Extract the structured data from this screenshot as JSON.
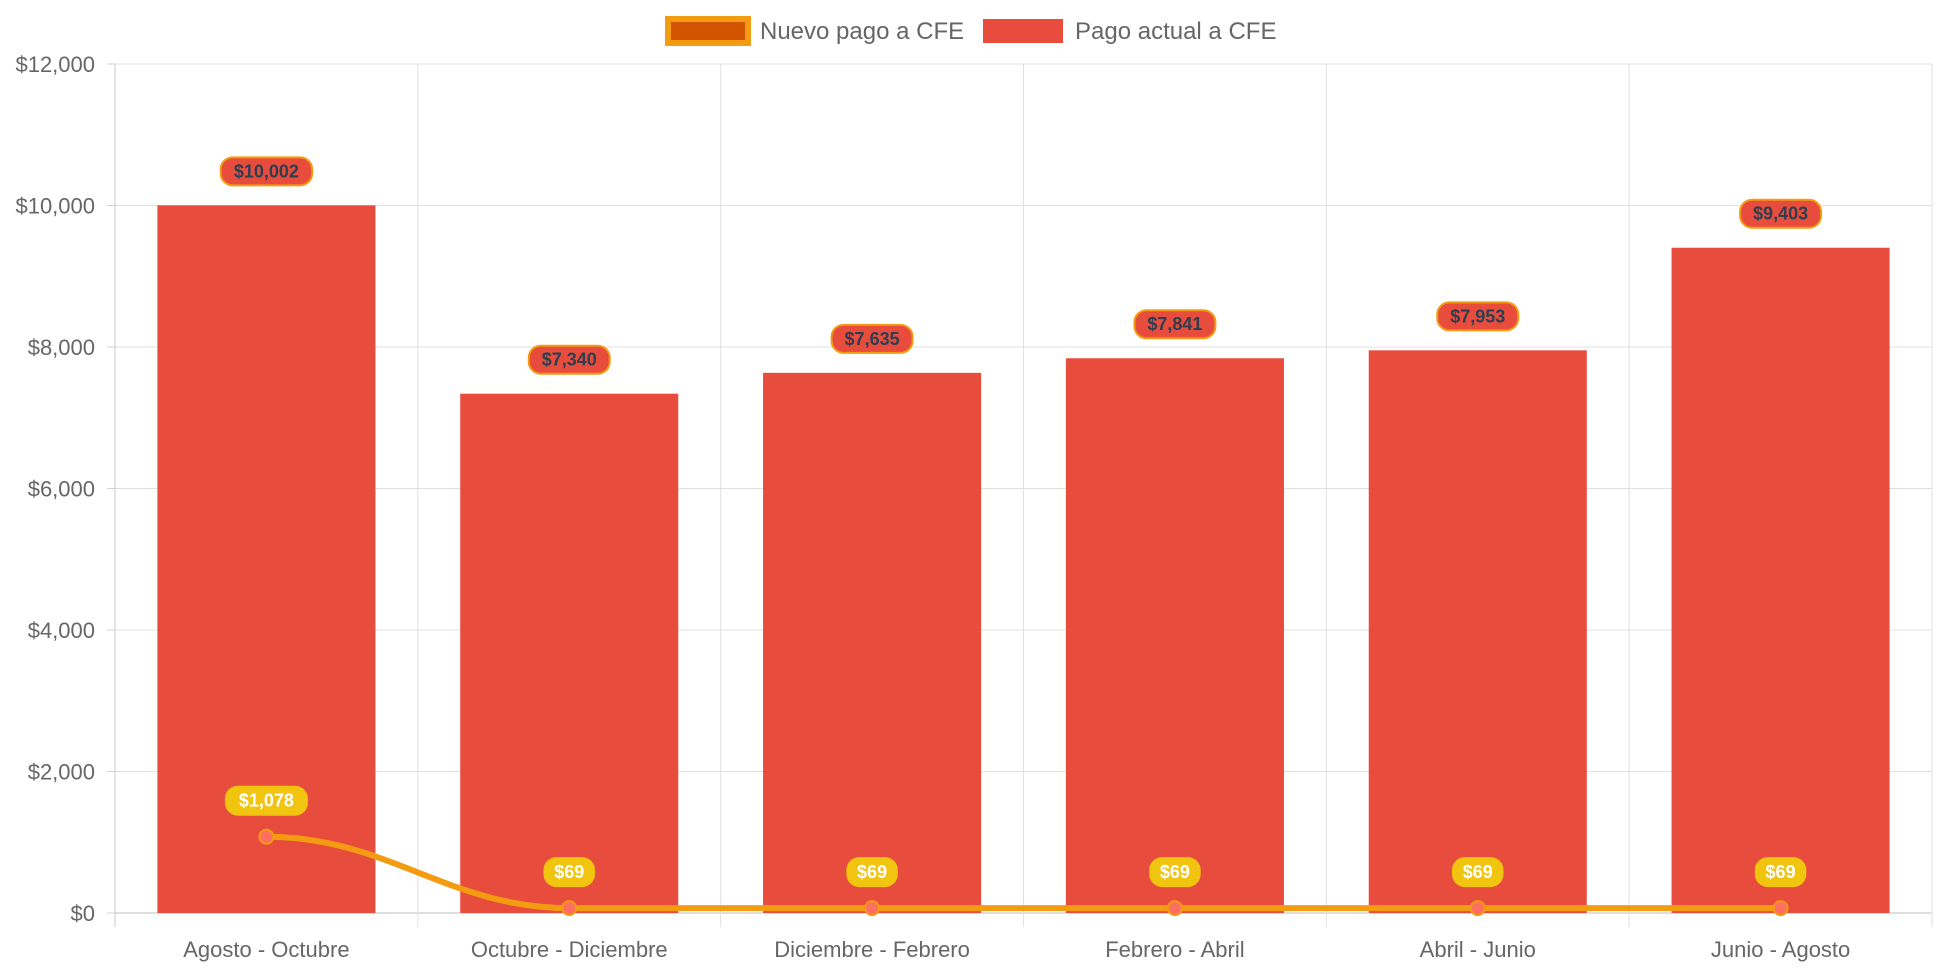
{
  "chart_data": {
    "type": "bar",
    "categories": [
      "Agosto - Octubre",
      "Octubre - Diciembre",
      "Diciembre - Febrero",
      "Febrero - Abril",
      "Abril - Junio",
      "Junio - Agosto"
    ],
    "series": [
      {
        "name": "Nuevo pago a CFE",
        "type": "line",
        "values": [
          1078,
          69,
          69,
          69,
          69,
          69
        ],
        "labels": [
          "$1,078",
          "$69",
          "$69",
          "$69",
          "$69",
          "$69"
        ],
        "color": "#f39c12",
        "point_color": "#ff6f61",
        "legend_fill": "#d35400",
        "label_bg": "#f1c40f",
        "label_text_color": "#ffffff"
      },
      {
        "name": "Pago actual a CFE",
        "type": "bar",
        "values": [
          10002,
          7340,
          7635,
          7841,
          7953,
          9403
        ],
        "labels": [
          "$10,002",
          "$7,340",
          "$7,635",
          "$7,841",
          "$7,953",
          "$9,403"
        ],
        "color": "#e74c3c",
        "label_bg": "#e74c3c",
        "label_border": "#f39c12",
        "label_text_color": "#2c3e50"
      }
    ],
    "y_ticks": [
      "$0",
      "$2,000",
      "$4,000",
      "$6,000",
      "$8,000",
      "$10,000",
      "$12,000"
    ],
    "ylim": [
      0,
      12000
    ],
    "ystep": 2000,
    "grid": true,
    "legend_position": "top",
    "title": "",
    "xlabel": "",
    "ylabel": ""
  }
}
